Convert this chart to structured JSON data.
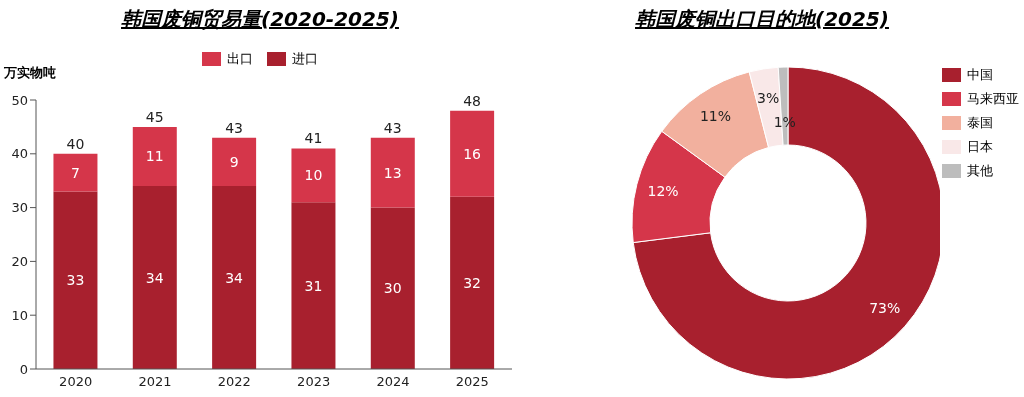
{
  "chart_data": [
    {
      "type": "bar",
      "title": "韩国废铜贸易量(2020-2025)",
      "ylabel": "万实物吨",
      "categories": [
        "2020",
        "2021",
        "2022",
        "2023",
        "2024",
        "2025"
      ],
      "stacked": true,
      "series": [
        {
          "name": "进口",
          "color": "#a8202e",
          "values": [
            33,
            34,
            34,
            31,
            30,
            32
          ]
        },
        {
          "name": "出口",
          "color": "#d5364a",
          "values": [
            7,
            11,
            9,
            10,
            13,
            16
          ]
        }
      ],
      "totals": [
        "40",
        "45",
        "43",
        "41",
        "43",
        "48"
      ],
      "ylim": [
        0,
        50
      ],
      "yticks": [
        0,
        10,
        20,
        30,
        40,
        50
      ],
      "legend": "top",
      "data_labels": true
    },
    {
      "type": "donut",
      "title": "韩国废铜出口目的地(2025)",
      "categories": [
        "中国",
        "马来西亚",
        "泰国",
        "日本",
        "其他"
      ],
      "values": [
        73,
        12,
        11,
        3,
        1
      ],
      "colors": [
        "#a8202e",
        "#d5364a",
        "#f2b09e",
        "#f9e8e8",
        "#bdbdbd"
      ],
      "value_labels": [
        "73%",
        "12%",
        "11%",
        "3%",
        "1%"
      ],
      "legend": "right"
    }
  ]
}
